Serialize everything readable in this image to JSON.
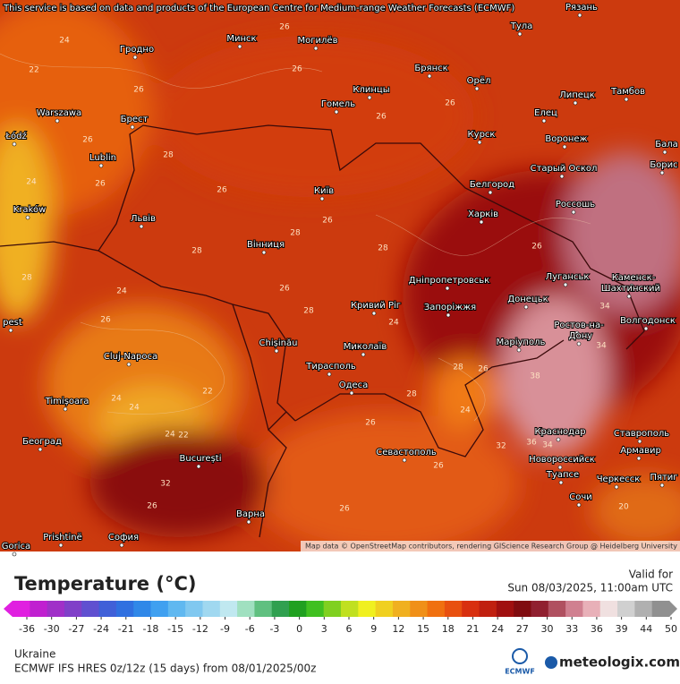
{
  "attribution": "This service is based on data and products of the European Centre for Medium-range Weather Forecasts (ECMWF)",
  "map_credit": "Map data © OpenStreetMap contributors, rendering GIScience Research Group @ Heidelberg University",
  "cities": [
    "Гродно",
    "Минск",
    "Могилёв",
    "Брянск",
    "Тула",
    "Рязань",
    "Орёл",
    "Липецк",
    "Тамбов",
    "Warszawa",
    "Брест",
    "Клинцы",
    "Гомель",
    "Елец",
    "Курск",
    "Воронеж",
    "Бала",
    "Łódź",
    "Lublin",
    "Старый Оскол",
    "Борис",
    "Белгород",
    "Київ",
    "Kraków",
    "Львів",
    "Харків",
    "Россошь",
    "Вінниця",
    "Луганськ",
    "Каменск-",
    "Шахтинский",
    "Дніпропетровськ",
    "Донецьк",
    "Кривий Ріг",
    "Запоріжжя",
    "Волгодонск",
    "Ростов-на-",
    "Дону",
    "pest",
    "Chișinău",
    "Маріуполь",
    "Миколаїв",
    "Тирасполь",
    "Cluj-Napoca",
    "Одеса",
    "Timișoara",
    "Београд",
    "Краснодар",
    "Ставрополь",
    "Севастополь",
    "Армавир",
    "Новороссийск",
    "București",
    "Туапсе",
    "Черкесск",
    "Пятиг",
    "Сочи",
    "Варна",
    "Prishtinë",
    "София",
    "Gorica"
  ],
  "contour_labels": [
    24,
    22,
    26,
    26,
    26,
    26,
    26,
    26,
    28,
    24,
    26,
    26,
    26,
    28,
    24,
    26,
    26,
    28,
    28,
    28,
    34,
    34,
    28,
    24,
    24,
    22,
    24,
    22,
    24,
    32,
    26,
    26,
    26,
    26,
    28,
    38,
    36,
    34,
    32,
    20,
    24,
    26,
    28,
    26
  ],
  "legend": {
    "title": "Temperature (°C)",
    "valid_label": "Valid for",
    "valid_time": "Sun 08/03/2025, 11:00am UTC",
    "ticks": [
      -36,
      -30,
      -27,
      -24,
      -21,
      -18,
      -15,
      -12,
      -9,
      -6,
      -3,
      0,
      3,
      6,
      9,
      12,
      15,
      18,
      21,
      24,
      27,
      30,
      33,
      36,
      39,
      44,
      50
    ],
    "colors": [
      "#e020e0",
      "#c020d0",
      "#a030c8",
      "#8040c8",
      "#6050d0",
      "#4060d8",
      "#3070e0",
      "#3088e8",
      "#40a0f0",
      "#60b8f0",
      "#80c8f0",
      "#a0d8f0",
      "#c0e8f0",
      "#a0e0c0",
      "#60c080",
      "#30a050",
      "#20a020",
      "#40c020",
      "#80d020",
      "#c0e020",
      "#f0f020",
      "#f0d020",
      "#f0b020",
      "#f09018",
      "#f07010",
      "#e85010",
      "#d83010",
      "#c02010",
      "#a01010",
      "#800c10",
      "#902030",
      "#b05060",
      "#d08090",
      "#e8b0b8",
      "#f0e0e0",
      "#d0d0d0",
      "#b0b0b0",
      "#909090"
    ]
  },
  "footer": {
    "region": "Ukraine",
    "model": "ECMWF IFS HRES 0z/12z (15 days) from 08/01/2025/00z",
    "ecmwf_logo": "ECMWF",
    "brand": "meteologix.com"
  }
}
